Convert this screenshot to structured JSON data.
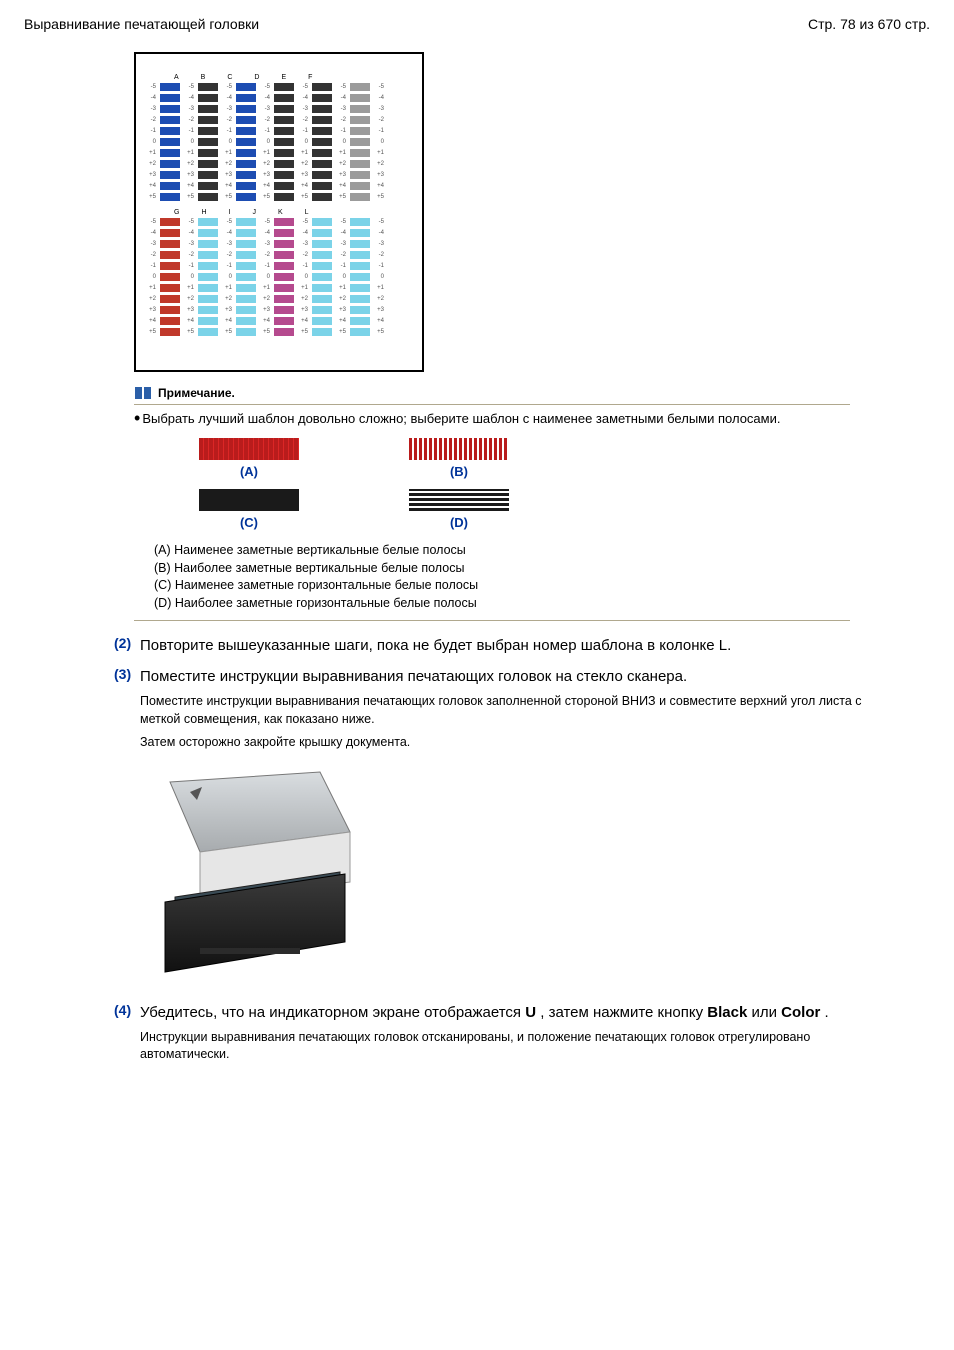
{
  "header": {
    "left": "Выравнивание печатающей головки",
    "right": "Стр. 78 из 670 стр."
  },
  "note": {
    "title": "Примечание.",
    "text": "Выбрать лучший шаблон довольно сложно; выберите шаблон с наименее заметными белыми полосами."
  },
  "ab_labels": {
    "a": "(A)",
    "b": "(B)",
    "c": "(C)",
    "d": "(D)"
  },
  "legend": {
    "a": "(A) Наименее заметные вертикальные белые полосы",
    "b": "(B) Наиболее заметные вертикальные белые полосы",
    "c": "(C) Наименее заметные горизонтальные белые полосы",
    "d": "(D) Наиболее заметные горизонтальные белые полосы"
  },
  "steps": {
    "s2_num": "(2)",
    "s2_title": "Повторите вышеуказанные шаги, пока не будет выбран номер шаблона в колонке L.",
    "s3_num": "(3)",
    "s3_title": "Поместите инструкции выравнивания печатающих головок на стекло сканера.",
    "s3_body1": "Поместите инструкции выравнивания печатающих головок заполненной стороной ВНИЗ и совместите верхний угол листа с меткой совмещения, как показано ниже.",
    "s3_body2": "Затем осторожно закройте крышку документа.",
    "s4_num": "(4)",
    "s4_title_a": "Убедитесь, что на индикаторном экране отображается ",
    "s4_title_u": "U",
    "s4_title_b": " , затем нажмите кнопку ",
    "s4_black": "Black",
    "s4_or": " или ",
    "s4_color": "Color",
    "s4_dot": " .",
    "s4_body": "Инструкции выравнивания печатающих головок отсканированы, и положение печатающих головок отрегулировано автоматически."
  },
  "pattern_cols_top": [
    "A",
    "B",
    "C",
    "D",
    "E",
    "F"
  ],
  "pattern_cols_bot": [
    "G",
    "H",
    "I",
    "J",
    "K",
    "L"
  ],
  "pattern_rows_top": [
    "-5",
    "-4",
    "-3",
    "-2",
    "-1",
    "0",
    "+1",
    "+2",
    "+3",
    "+4",
    "+5"
  ],
  "pattern_rows_bot": [
    "-5",
    "-4",
    "-3",
    "-2",
    "-1",
    "0",
    "+1",
    "+2",
    "+3",
    "+4",
    "+5"
  ]
}
